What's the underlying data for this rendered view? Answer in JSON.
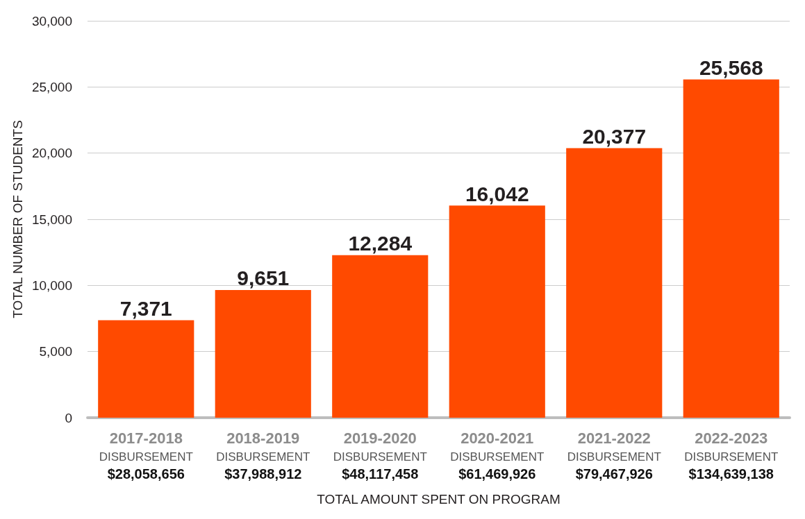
{
  "chart_data": {
    "type": "bar",
    "categories": [
      "2017-2018\nDISBURSEMENT\n$28,058,656",
      "2018-2019\nDISBURSEMENT\n$37,988,912",
      "2019-2020\nDISBURSEMENT\n$48,117,458",
      "2020-2021\nDISBURSEMENT\n$61,469,926",
      "2021-2022\nDISBURSEMENT\n$79,467,926",
      "2022-2023\nDISBURSEMENT\n$134,639,138"
    ],
    "values": [
      7371,
      9651,
      12284,
      16042,
      20377,
      25568
    ],
    "color": "#ff4a00",
    "value_labels": [
      "7,371",
      "9,651",
      "12,284",
      "16,042",
      "20,377",
      "25,568"
    ],
    "ylim": [
      0,
      30000
    ],
    "yticks": [
      0,
      {
        "value": 5000,
        "label": "5,000"
      },
      {
        "value": 10000,
        "label": "10,000"
      },
      {
        "value": 15000,
        "label": "15,000"
      },
      {
        "value": 20000,
        "label": "20,000"
      },
      {
        "value": 25000,
        "label": "25,000"
      },
      {
        "value": 30000,
        "label": "30,000"
      }
    ],
    "ylabel": "TOTAL NUMBER OF STUDENTS",
    "xlabel": "TOTAL AMOUNT SPENT ON PROGRAM",
    "grid": "y"
  }
}
